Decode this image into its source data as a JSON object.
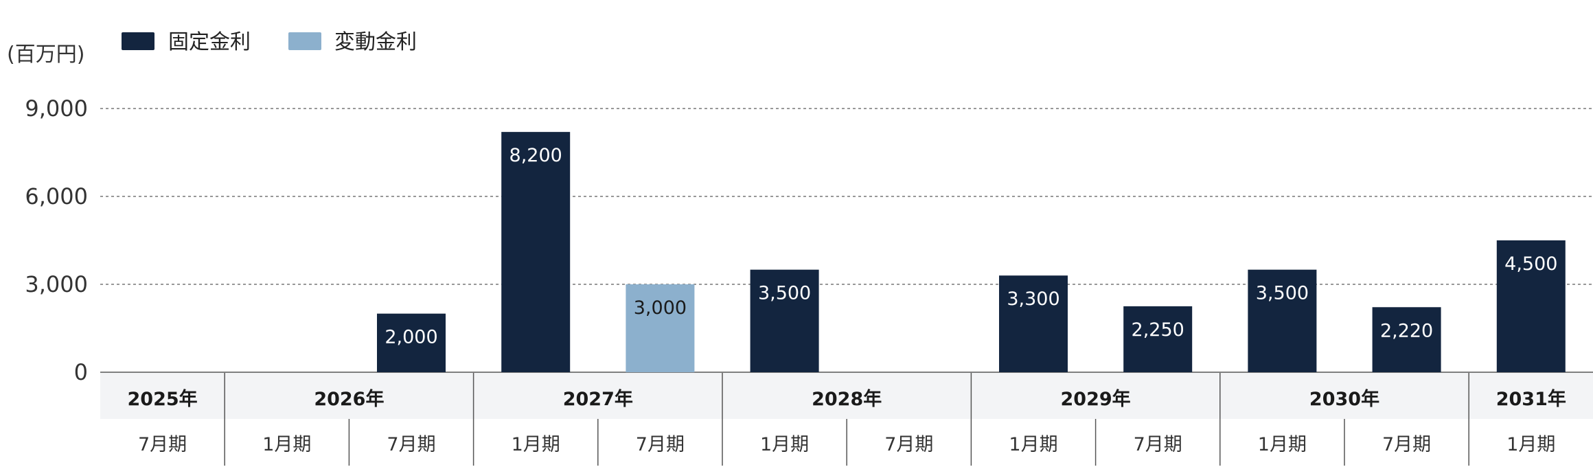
{
  "legend": {
    "fixed_label": "固定金利",
    "floating_label": "変動金利"
  },
  "unit_label": "(百万円)",
  "colors": {
    "fixed": "#13253f",
    "floating": "#8cb0cd",
    "fixed_text": "#ffffff",
    "floating_text": "#1a1a1a",
    "grid": "#777777",
    "header_bg": "#f3f4f6",
    "divider": "#555555"
  },
  "chart_data": {
    "type": "bar",
    "ylabel": "(百万円)",
    "ylim": [
      0,
      9000
    ],
    "yticks": [
      "0",
      "3,000",
      "6,000",
      "9,000"
    ],
    "ytick_values": [
      0,
      3000,
      6000,
      9000
    ],
    "grid": "dotted horizontal",
    "legend_position": "top-left",
    "categories": [
      "7月期",
      "1月期",
      "7月期",
      "1月期",
      "7月期",
      "1月期",
      "7月期",
      "1月期",
      "7月期",
      "1月期",
      "7月期",
      "1月期"
    ],
    "year_groups": [
      {
        "label": "2025年",
        "span": 1
      },
      {
        "label": "2026年",
        "span": 2
      },
      {
        "label": "2027年",
        "span": 2
      },
      {
        "label": "2028年",
        "span": 2
      },
      {
        "label": "2029年",
        "span": 2
      },
      {
        "label": "2030年",
        "span": 2
      },
      {
        "label": "2031年",
        "span": 1
      }
    ],
    "bars": [
      {
        "index": 0,
        "type": "fixed",
        "value": null,
        "label": ""
      },
      {
        "index": 1,
        "type": "fixed",
        "value": null,
        "label": ""
      },
      {
        "index": 2,
        "type": "fixed",
        "value": 2000,
        "label": "2,000"
      },
      {
        "index": 3,
        "type": "fixed",
        "value": 8200,
        "label": "8,200"
      },
      {
        "index": 4,
        "type": "floating",
        "value": 3000,
        "label": "3,000"
      },
      {
        "index": 5,
        "type": "fixed",
        "value": 3500,
        "label": "3,500"
      },
      {
        "index": 6,
        "type": "fixed",
        "value": null,
        "label": ""
      },
      {
        "index": 7,
        "type": "fixed",
        "value": 3300,
        "label": "3,300"
      },
      {
        "index": 8,
        "type": "fixed",
        "value": 2250,
        "label": "2,250"
      },
      {
        "index": 9,
        "type": "fixed",
        "value": 3500,
        "label": "3,500"
      },
      {
        "index": 10,
        "type": "fixed",
        "value": 2220,
        "label": "2,220"
      },
      {
        "index": 11,
        "type": "fixed",
        "value": 4500,
        "label": "4,500"
      }
    ]
  }
}
